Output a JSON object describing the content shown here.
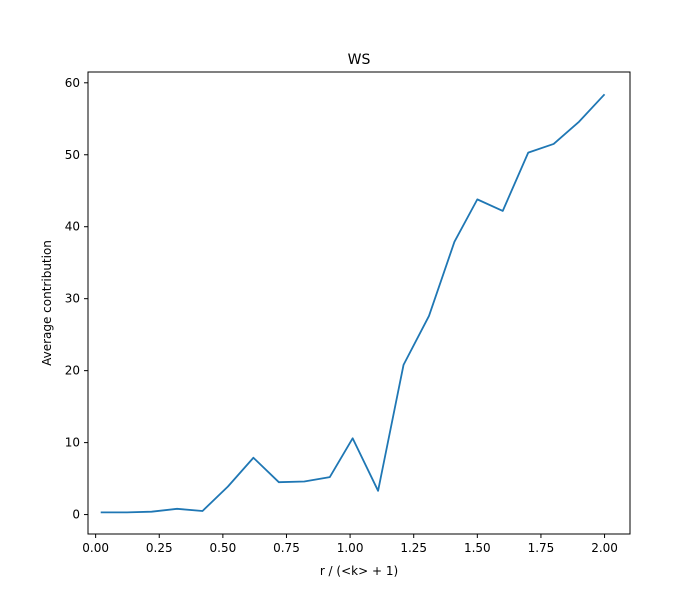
{
  "chart_data": {
    "type": "line",
    "title": "WS",
    "xlabel": "r / (<k> + 1)",
    "ylabel": "Average contribution",
    "xlim": [
      -0.03,
      2.1
    ],
    "ylim": [
      -2.7,
      61.5
    ],
    "grid": false,
    "x_ticks": [
      0.0,
      0.25,
      0.5,
      0.75,
      1.0,
      1.25,
      1.5,
      1.75,
      2.0
    ],
    "x_tick_labels": [
      "0.00",
      "0.25",
      "0.50",
      "0.75",
      "1.00",
      "1.25",
      "1.50",
      "1.75",
      "2.00"
    ],
    "y_ticks": [
      0,
      10,
      20,
      30,
      40,
      50,
      60
    ],
    "y_tick_labels": [
      "0",
      "10",
      "20",
      "30",
      "40",
      "50",
      "60"
    ],
    "series": [
      {
        "color": "#1f77b4",
        "x": [
          0.02,
          0.12,
          0.22,
          0.32,
          0.42,
          0.52,
          0.62,
          0.72,
          0.82,
          0.92,
          1.01,
          1.11,
          1.21,
          1.31,
          1.41,
          1.5,
          1.6,
          1.7,
          1.8,
          1.9,
          2.0
        ],
        "y": [
          0.3,
          0.3,
          0.4,
          0.8,
          0.5,
          3.9,
          7.9,
          4.5,
          4.6,
          5.2,
          10.6,
          3.3,
          20.8,
          27.6,
          37.9,
          43.8,
          42.2,
          50.3,
          51.5,
          54.6,
          58.4
        ]
      }
    ]
  }
}
